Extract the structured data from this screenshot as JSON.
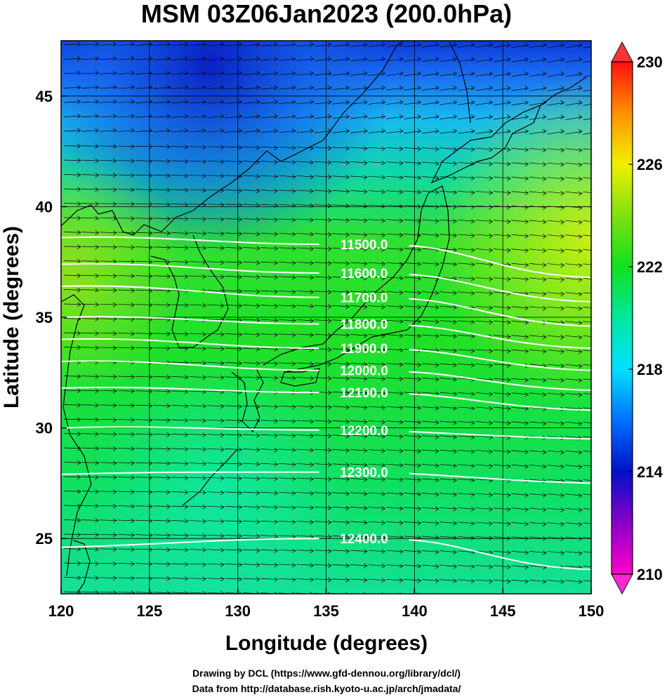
{
  "chart_data": {
    "type": "heatmap",
    "title": "MSM 03Z06Jan2023 (200.0hPa)",
    "xlabel": "Longitude (degrees)",
    "ylabel": "Latitude  (degrees)",
    "xlim": [
      120,
      150
    ],
    "ylim": [
      22.5,
      47.5
    ],
    "xticks": [
      "120",
      "125",
      "130",
      "135",
      "140",
      "145",
      "150"
    ],
    "yticks": [
      "25",
      "30",
      "35",
      "40",
      "45"
    ],
    "colorbar": {
      "range": [
        210,
        230
      ],
      "ticks": [
        "210",
        "214",
        "218",
        "222",
        "226",
        "230"
      ],
      "stops": [
        {
          "value": 210,
          "color": "#ff00cc"
        },
        {
          "value": 212,
          "color": "#8a00c8"
        },
        {
          "value": 214,
          "color": "#0010c8"
        },
        {
          "value": 216,
          "color": "#0070ff"
        },
        {
          "value": 218,
          "color": "#00e0ff"
        },
        {
          "value": 220,
          "color": "#00e8a0"
        },
        {
          "value": 222,
          "color": "#10e020"
        },
        {
          "value": 224,
          "color": "#80e010"
        },
        {
          "value": 226,
          "color": "#f0f000"
        },
        {
          "value": 228,
          "color": "#ff9000"
        },
        {
          "value": 230,
          "color": "#ff1010"
        }
      ]
    },
    "contours": [
      {
        "label": "11500.0",
        "left_lat": 38.6,
        "mid_lat": 38.3,
        "right_lat": 36.8
      },
      {
        "label": "11600.0",
        "left_lat": 37.4,
        "mid_lat": 37.0,
        "right_lat": 35.7
      },
      {
        "label": "11700.0",
        "left_lat": 36.4,
        "mid_lat": 35.9,
        "right_lat": 34.6
      },
      {
        "label": "11800.0",
        "left_lat": 35.0,
        "mid_lat": 34.7,
        "right_lat": 33.6
      },
      {
        "label": "11900.0",
        "left_lat": 34.0,
        "mid_lat": 33.6,
        "right_lat": 32.6
      },
      {
        "label": "12000.0",
        "left_lat": 33.0,
        "mid_lat": 32.6,
        "right_lat": 31.7
      },
      {
        "label": "12100.0",
        "left_lat": 31.8,
        "mid_lat": 31.6,
        "right_lat": 30.8
      },
      {
        "label": "12200.0",
        "left_lat": 30.0,
        "mid_lat": 29.9,
        "right_lat": 29.5
      },
      {
        "label": "12300.0",
        "left_lat": 27.9,
        "mid_lat": 28.0,
        "right_lat": 27.5
      },
      {
        "label": "12400.0",
        "left_lat": 24.6,
        "mid_lat": 25.0,
        "right_lat": 23.6
      }
    ],
    "grid": true,
    "wind_vectors": true
  },
  "credits": {
    "line1": "Drawing by DCL (https://www.gfd-dennou.org/library/dcl/)",
    "line2": "Data from http://database.rish.kyoto-u.ac.jp/arch/jmadata/"
  }
}
